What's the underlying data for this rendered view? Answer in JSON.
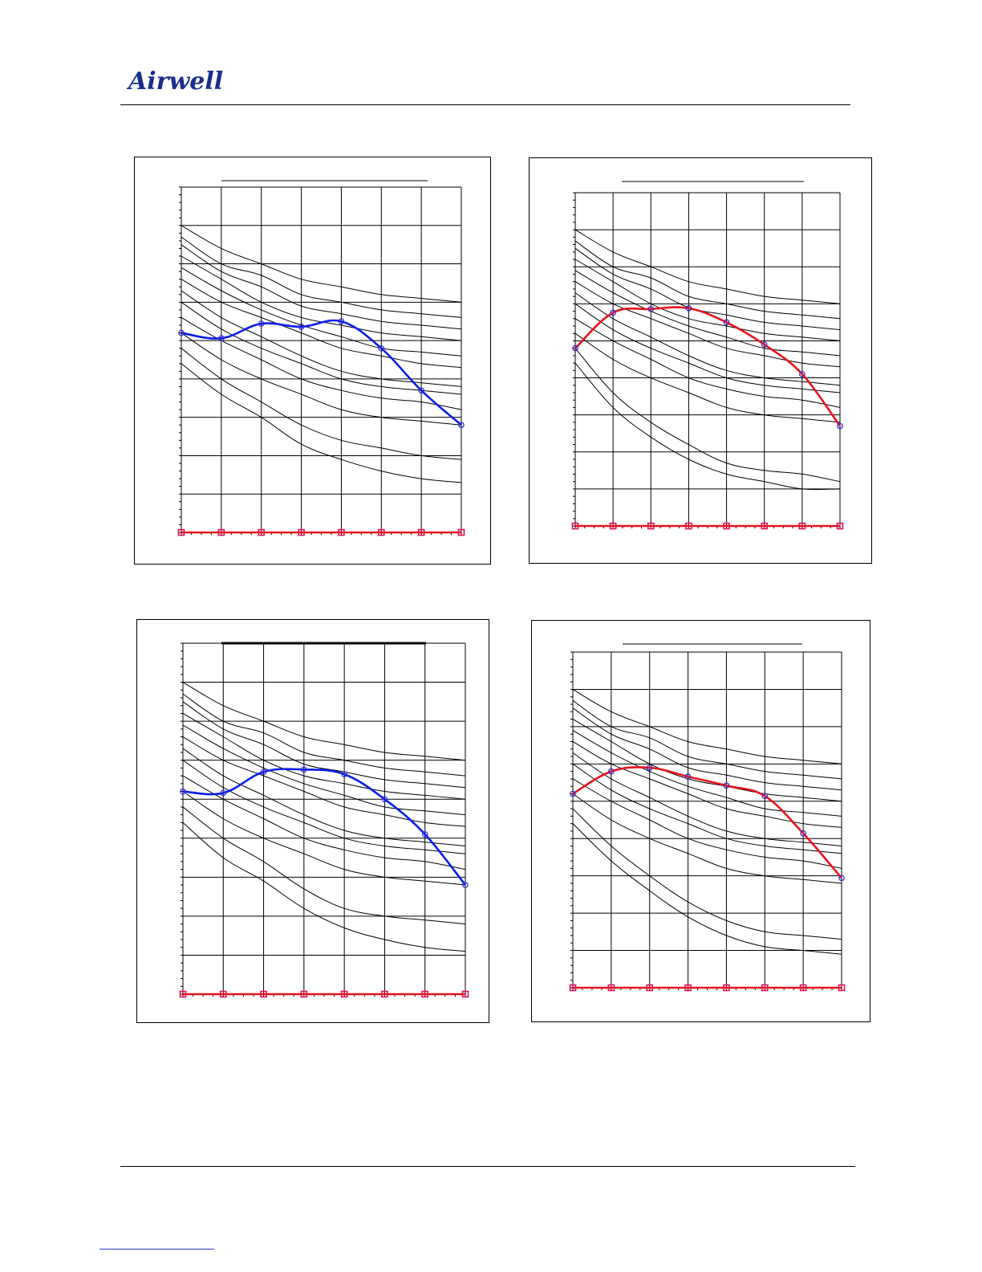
{
  "header": {
    "logo_text": "Airwell",
    "logo_color": "#1c2e8c"
  },
  "colors": {
    "blue_series": "#0a1ee6",
    "red_series": "#e8141c",
    "marker_red": "#e0105a",
    "marker_blue": "#3a2fd6"
  },
  "chart_data": [
    {
      "type": "line",
      "grid": true,
      "xlim": [
        0,
        7
      ],
      "ylim": [
        0,
        45
      ],
      "x": [
        0,
        1,
        2,
        3,
        4,
        5,
        6,
        7
      ],
      "curves": [
        [
          40,
          37,
          35,
          33,
          32,
          31,
          30.5,
          30
        ],
        [
          38.5,
          35,
          33.5,
          31,
          30,
          29,
          28.5,
          28
        ],
        [
          37.5,
          34,
          32,
          29.5,
          28.5,
          27.5,
          27,
          26.5
        ],
        [
          36,
          33,
          30,
          28,
          27,
          26,
          25.5,
          25
        ],
        [
          34.5,
          31.5,
          29,
          27,
          25.5,
          24,
          23.5,
          23
        ],
        [
          33,
          30,
          28,
          26,
          24,
          23,
          22,
          21.5
        ],
        [
          31.5,
          28,
          25.5,
          23,
          21,
          20,
          19.5,
          19
        ],
        [
          30,
          26.5,
          24,
          22,
          20,
          19,
          18.5,
          18
        ],
        [
          28,
          25,
          22.5,
          20,
          18.5,
          17.5,
          17,
          16
        ],
        [
          26,
          22.5,
          20,
          18,
          16,
          15,
          14.5,
          14
        ],
        [
          24,
          20,
          17,
          14,
          12,
          11,
          10,
          9.5
        ],
        [
          22,
          18,
          15,
          11.5,
          9.5,
          8,
          7,
          6.5
        ]
      ],
      "series": [
        {
          "values": [
            26,
            25.3,
            27.2,
            26.8,
            27.5,
            24,
            18.5,
            14
          ],
          "color": "#0a1ee6",
          "marker": "#3a2fd6"
        },
        {
          "values": [
            0,
            0,
            0,
            0,
            0,
            0,
            0,
            0
          ],
          "color": "#e8141c",
          "marker": "#e0105a"
        }
      ]
    },
    {
      "type": "line",
      "grid": true,
      "xlim": [
        0,
        7
      ],
      "ylim": [
        0,
        45
      ],
      "x": [
        0,
        1,
        2,
        3,
        4,
        5,
        6,
        7
      ],
      "curves": [
        [
          40,
          37,
          35,
          33,
          32,
          31,
          30.5,
          30
        ],
        [
          38.5,
          35,
          33.5,
          31,
          30,
          29,
          28.5,
          28
        ],
        [
          37.5,
          34,
          32,
          29.5,
          28.5,
          27.5,
          27,
          26.5
        ],
        [
          36,
          33,
          30,
          28,
          27,
          26,
          25.5,
          25
        ],
        [
          34.5,
          31.5,
          29,
          27,
          25.5,
          24,
          23.5,
          23
        ],
        [
          33,
          30,
          28,
          26,
          24,
          23,
          22,
          21.5
        ],
        [
          31.5,
          28,
          25.5,
          23,
          21,
          20,
          19.5,
          19
        ],
        [
          30,
          26.5,
          24,
          22,
          20,
          19,
          18.5,
          18
        ],
        [
          28,
          25,
          22.5,
          20,
          18.5,
          17.5,
          17,
          16
        ],
        [
          26,
          22.5,
          20,
          18,
          16,
          15,
          14.5,
          14
        ],
        [
          24,
          18,
          14,
          11,
          8.5,
          7.5,
          7,
          6
        ],
        [
          22,
          16,
          12,
          9,
          7,
          6,
          5,
          5
        ]
      ],
      "series": [
        {
          "values": [
            24,
            28.8,
            29.3,
            29.4,
            27.5,
            24.5,
            20.5,
            13.5
          ],
          "color": "#e8141c",
          "marker": "#3a2fd6"
        },
        {
          "values": [
            0,
            0,
            0,
            0,
            0,
            0,
            0,
            0
          ],
          "color": "#e8141c",
          "marker": "#e0105a"
        }
      ]
    },
    {
      "type": "line",
      "grid": true,
      "xlim": [
        0,
        7
      ],
      "ylim": [
        0,
        45
      ],
      "x": [
        0,
        1,
        2,
        3,
        4,
        5,
        6,
        7
      ],
      "curves": [
        [
          40,
          37,
          35,
          33,
          32,
          31,
          30.5,
          30
        ],
        [
          38.5,
          35,
          33.5,
          31,
          30,
          29,
          28.5,
          28
        ],
        [
          37.5,
          34,
          32,
          29.5,
          28.5,
          27.5,
          27,
          26.5
        ],
        [
          36,
          33,
          30,
          28,
          27,
          26,
          25.5,
          25
        ],
        [
          34.5,
          31.5,
          29,
          27,
          25.5,
          24,
          23.5,
          23
        ],
        [
          33,
          30,
          28,
          26,
          24,
          23,
          22,
          21.5
        ],
        [
          31.5,
          28,
          25.5,
          23,
          21,
          20,
          19.5,
          19
        ],
        [
          30,
          26.5,
          24,
          22,
          20,
          19,
          18.5,
          18
        ],
        [
          28,
          25,
          22.5,
          20,
          18.5,
          17.5,
          17,
          16
        ],
        [
          26,
          22.5,
          20,
          18,
          16,
          15,
          14.5,
          14
        ],
        [
          24,
          20,
          17,
          13.5,
          11,
          10,
          9.5,
          9
        ],
        [
          22,
          17.5,
          14.5,
          11,
          8.5,
          7,
          6,
          5.5
        ]
      ],
      "series": [
        {
          "values": [
            26,
            25.8,
            28.5,
            28.8,
            28.2,
            25,
            20.5,
            14
          ],
          "color": "#0a1ee6",
          "marker": "#3a2fd6"
        },
        {
          "values": [
            0,
            0,
            0,
            0,
            0,
            0,
            0,
            0
          ],
          "color": "#e8141c",
          "marker": "#e0105a"
        }
      ]
    },
    {
      "type": "line",
      "grid": true,
      "xlim": [
        0,
        7
      ],
      "ylim": [
        0,
        45
      ],
      "x": [
        0,
        1,
        2,
        3,
        4,
        5,
        6,
        7
      ],
      "curves": [
        [
          40,
          37,
          35,
          33,
          32,
          31,
          30.5,
          30
        ],
        [
          38.5,
          35,
          33.5,
          31,
          30,
          29,
          28.5,
          28
        ],
        [
          37.5,
          34,
          32,
          29.5,
          28.5,
          27.5,
          27,
          26.5
        ],
        [
          36,
          33,
          30,
          28,
          27,
          26,
          25.5,
          25
        ],
        [
          34.5,
          31.5,
          29,
          27,
          25.5,
          24,
          23.5,
          23
        ],
        [
          33,
          30,
          28,
          26,
          24,
          23,
          22,
          21.5
        ],
        [
          31.5,
          28,
          25.5,
          23,
          21,
          20,
          19.5,
          19
        ],
        [
          30,
          26.5,
          24,
          22,
          20,
          19,
          18.5,
          18
        ],
        [
          28,
          25,
          22.5,
          20,
          18.5,
          17.5,
          17,
          16
        ],
        [
          26,
          22.5,
          20,
          18,
          16,
          15,
          14.5,
          14
        ],
        [
          24,
          19,
          15,
          11.5,
          9,
          7.5,
          7,
          6.5
        ],
        [
          22,
          17,
          13,
          9.5,
          7,
          5.5,
          5,
          4.5
        ]
      ],
      "series": [
        {
          "values": [
            26,
            29,
            29.5,
            28.3,
            27.1,
            25.7,
            20.7,
            14.7
          ],
          "color": "#e8141c",
          "marker": "#3a2fd6"
        },
        {
          "values": [
            0,
            0,
            0,
            0,
            0,
            0,
            0,
            0
          ],
          "color": "#e8141c",
          "marker": "#e0105a"
        }
      ]
    }
  ]
}
